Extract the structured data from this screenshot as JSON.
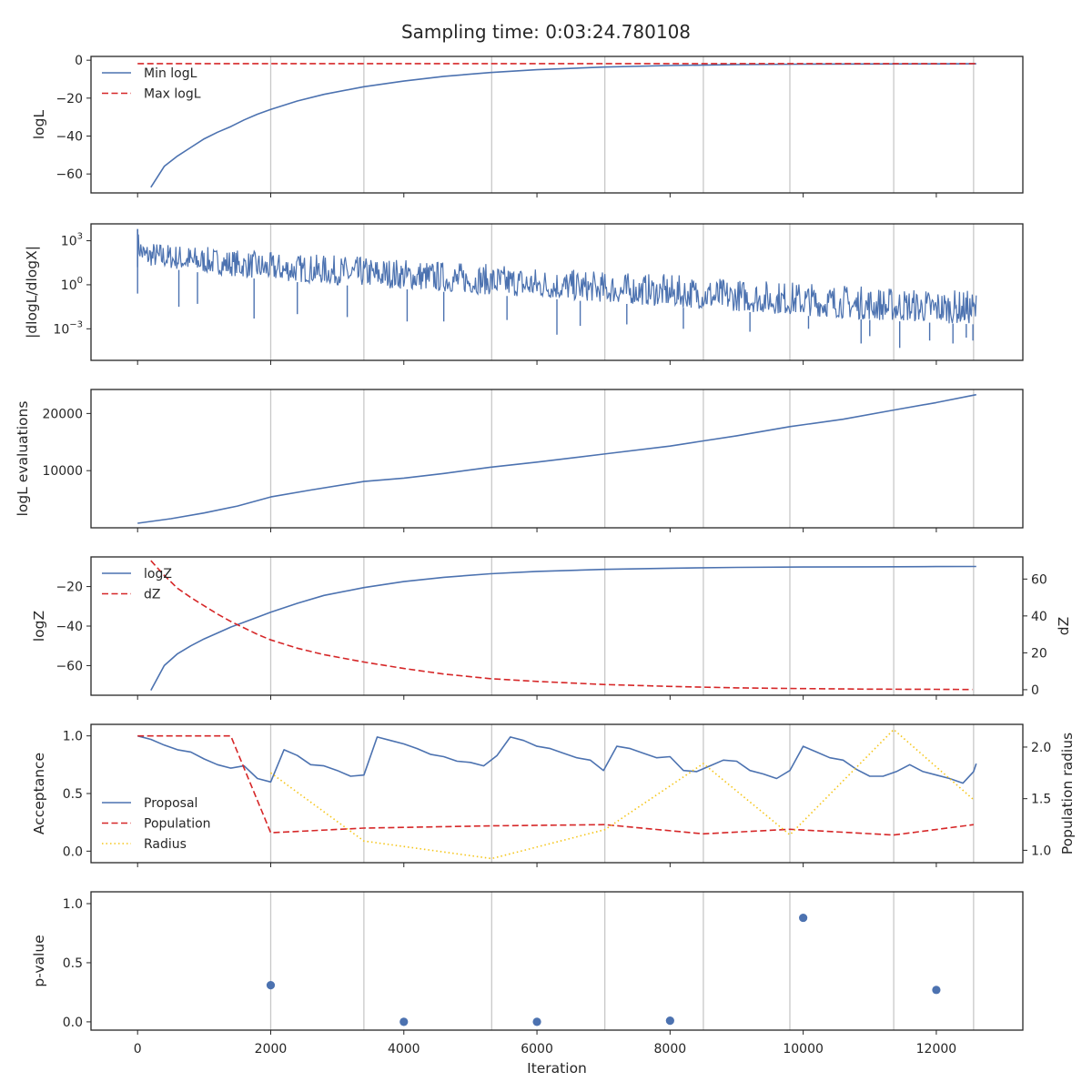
{
  "figure": {
    "title": "Sampling time: 0:03:24.780108",
    "xlabel": "Iteration",
    "x_ticks": [
      0,
      2000,
      4000,
      6000,
      8000,
      10000,
      12000
    ],
    "x_tick_labels": [
      "0",
      "2000",
      "4000",
      "6000",
      "8000",
      "10000",
      "12000"
    ],
    "xlim": [
      -700,
      13300
    ],
    "vlines": [
      2000,
      3400,
      5320,
      7020,
      8500,
      9800,
      11360,
      12560
    ]
  },
  "colors": {
    "blue": "#4c72b0",
    "red": "#d62728",
    "yellow": "#f5c518",
    "grid": "#c8c8c8",
    "axis": "#262626"
  },
  "chart_data": [
    {
      "type": "line",
      "ylabel": "logL",
      "ylim": [
        -70,
        2
      ],
      "y_ticks": [
        0,
        -20,
        -40,
        -60
      ],
      "y_tick_labels": [
        "0",
        "−20",
        "−40",
        "−60"
      ],
      "legend": {
        "placement": "upper-left",
        "entries": [
          {
            "label": "Min logL",
            "style": "solid",
            "color": "blue"
          },
          {
            "label": "Max logL",
            "style": "dashed",
            "color": "red"
          }
        ]
      },
      "series": [
        {
          "name": "Min logL",
          "style": "solid",
          "color": "blue",
          "x": [
            200,
            400,
            600,
            800,
            1000,
            1200,
            1400,
            1600,
            1800,
            2000,
            2400,
            2800,
            3400,
            4000,
            4600,
            5300,
            6000,
            7000,
            8000,
            9000,
            10000,
            11000,
            12000,
            12600
          ],
          "y": [
            -67,
            -56,
            -50.5,
            -46,
            -41.5,
            -38,
            -35,
            -31.5,
            -28.5,
            -26,
            -21.5,
            -18,
            -14,
            -11,
            -8.5,
            -6.5,
            -5,
            -3.6,
            -2.8,
            -2.3,
            -2.1,
            -2.0,
            -1.95,
            -1.9
          ]
        },
        {
          "name": "Max logL",
          "style": "dashed",
          "color": "red",
          "x": [
            0,
            12600
          ],
          "y": [
            -1.8,
            -1.8
          ]
        }
      ]
    },
    {
      "type": "line",
      "ylabel": "|dlogL/dlogX|",
      "yscale": "log",
      "ylim_log10": [
        -5.15,
        4.15
      ],
      "y_ticks_log10": [
        3,
        0,
        -3
      ],
      "y_tick_labels": [
        {
          "base": "10",
          "exp": "3"
        },
        {
          "base": "10",
          "exp": "0"
        },
        {
          "base": "10",
          "exp": "−3"
        }
      ],
      "envelope": {
        "color": "blue",
        "x": [
          0,
          100,
          1000,
          2000,
          3000,
          4000,
          5000,
          6000,
          7000,
          8000,
          9000,
          10000,
          11000,
          12000,
          12600
        ],
        "lower_log10": [
          1.9,
          1.3,
          0.8,
          0.3,
          0.0,
          -0.3,
          -0.6,
          -0.9,
          -1.2,
          -1.5,
          -1.8,
          -2.1,
          -2.4,
          -2.6,
          -2.7
        ],
        "upper_log10": [
          3.7,
          3.0,
          2.6,
          2.2,
          2.0,
          1.8,
          1.5,
          1.2,
          0.9,
          0.7,
          0.4,
          0.2,
          -0.1,
          -0.3,
          -0.4
        ]
      },
      "spikes": {
        "color": "blue",
        "x": [
          0,
          620,
          900,
          1750,
          2400,
          3150,
          4050,
          4600,
          5550,
          6300,
          6650,
          7350,
          8200,
          9200,
          10080,
          10870,
          11000,
          11450,
          11900,
          12250,
          12450,
          12550
        ],
        "y_log10": [
          -0.6,
          -1.5,
          -1.3,
          -2.3,
          -2.0,
          -2.2,
          -2.5,
          -2.5,
          -2.4,
          -3.4,
          -2.8,
          -2.7,
          -3.0,
          -3.2,
          -3.0,
          -4.0,
          -3.5,
          -4.3,
          -3.8,
          -4.0,
          -3.6,
          -3.8
        ]
      }
    },
    {
      "type": "line",
      "ylabel": "logL evaluations",
      "ylim": [
        0,
        24200
      ],
      "y_ticks": [
        20000,
        10000
      ],
      "y_tick_labels": [
        "20000",
        "10000"
      ],
      "series": [
        {
          "name": "",
          "style": "solid",
          "color": "blue",
          "x": [
            0,
            500,
            1000,
            1500,
            2000,
            2600,
            3400,
            4000,
            4600,
            5300,
            6000,
            7000,
            8000,
            8500,
            9000,
            9800,
            10600,
            11360,
            12000,
            12600
          ],
          "y": [
            800,
            1600,
            2600,
            3800,
            5400,
            6600,
            8100,
            8700,
            9500,
            10600,
            11500,
            12900,
            14300,
            15200,
            16100,
            17700,
            19000,
            20600,
            21900,
            23300
          ]
        }
      ]
    },
    {
      "type": "line",
      "ylabel": "logZ",
      "ylabel_right": "dZ",
      "ylim": [
        -75,
        -5
      ],
      "y_ticks": [
        -20,
        -40,
        -60
      ],
      "y_tick_labels": [
        "−20",
        "−40",
        "−60"
      ],
      "ylim_right": [
        -3,
        72
      ],
      "y_ticks_right": [
        60,
        40,
        20,
        0
      ],
      "y_tick_labels_right": [
        "60",
        "40",
        "20",
        "0"
      ],
      "legend": {
        "placement": "upper-left",
        "entries": [
          {
            "label": "logZ",
            "style": "solid",
            "color": "blue"
          },
          {
            "label": "dZ",
            "style": "dashed",
            "color": "red"
          }
        ]
      },
      "series": [
        {
          "name": "logZ",
          "axis": "left",
          "style": "solid",
          "color": "blue",
          "x": [
            200,
            400,
            600,
            800,
            1000,
            1200,
            1400,
            1600,
            1800,
            2000,
            2400,
            2800,
            3400,
            4000,
            4600,
            5300,
            6000,
            7000,
            8000,
            9000,
            10000,
            11000,
            12000,
            12600
          ],
          "y": [
            -72.5,
            -60,
            -54,
            -50,
            -46.5,
            -43.5,
            -40.5,
            -38,
            -35.5,
            -33,
            -28.5,
            -24.5,
            -20.5,
            -17.5,
            -15.3,
            -13.5,
            -12.3,
            -11.3,
            -10.7,
            -10.3,
            -10.1,
            -10.0,
            -9.9,
            -9.85
          ]
        },
        {
          "name": "dZ",
          "axis": "right",
          "style": "dashed",
          "color": "red",
          "x": [
            200,
            400,
            600,
            800,
            1000,
            1200,
            1400,
            1600,
            1800,
            2000,
            2400,
            2800,
            3400,
            4000,
            4600,
            5300,
            6000,
            7000,
            8000,
            9000,
            10000,
            11000,
            12000,
            12540
          ],
          "y": [
            70,
            62,
            55,
            50,
            45.5,
            41,
            37,
            33.5,
            30,
            27,
            22.5,
            19,
            15,
            11.5,
            8.5,
            6,
            4.5,
            2.8,
            1.8,
            1.0,
            0.6,
            0.3,
            0.2,
            0.1
          ]
        }
      ]
    },
    {
      "type": "line",
      "ylabel": "Acceptance",
      "ylabel_right": "Population radius",
      "ylim": [
        -0.1,
        1.1
      ],
      "y_ticks": [
        1.0,
        0.5,
        0.0
      ],
      "y_tick_labels": [
        "1.0",
        "0.5",
        "0.0"
      ],
      "ylim_right": [
        0.88,
        2.22
      ],
      "y_ticks_right": [
        2.0,
        1.5,
        1.0
      ],
      "y_tick_labels_right": [
        "2.0",
        "1.5",
        "1.0"
      ],
      "legend": {
        "placement": "center-left",
        "entries": [
          {
            "label": "Proposal",
            "style": "solid",
            "color": "blue"
          },
          {
            "label": "Population",
            "style": "dashed",
            "color": "red"
          },
          {
            "label": "Radius",
            "style": "dotted",
            "color": "yellow"
          }
        ]
      },
      "series": [
        {
          "name": "Proposal",
          "axis": "left",
          "style": "solid",
          "color": "blue",
          "x": [
            0,
            200,
            400,
            600,
            800,
            1000,
            1200,
            1400,
            1600,
            1800,
            2000,
            2200,
            2400,
            2600,
            2800,
            3000,
            3200,
            3400,
            3600,
            3800,
            4000,
            4200,
            4400,
            4600,
            4800,
            5000,
            5200,
            5400,
            5600,
            5800,
            6000,
            6200,
            6400,
            6600,
            6800,
            7000,
            7200,
            7400,
            7600,
            7800,
            8000,
            8200,
            8400,
            8600,
            8800,
            9000,
            9200,
            9400,
            9600,
            9800,
            10000,
            10200,
            10400,
            10600,
            10800,
            11000,
            11200,
            11400,
            11600,
            11800,
            12000,
            12200,
            12400,
            12560,
            12600
          ],
          "y": [
            1.0,
            0.97,
            0.92,
            0.88,
            0.86,
            0.8,
            0.75,
            0.72,
            0.74,
            0.63,
            0.6,
            0.88,
            0.83,
            0.75,
            0.74,
            0.7,
            0.65,
            0.66,
            0.99,
            0.96,
            0.93,
            0.89,
            0.84,
            0.82,
            0.78,
            0.77,
            0.74,
            0.83,
            0.99,
            0.96,
            0.91,
            0.89,
            0.85,
            0.81,
            0.79,
            0.7,
            0.91,
            0.89,
            0.85,
            0.81,
            0.82,
            0.7,
            0.69,
            0.74,
            0.79,
            0.78,
            0.7,
            0.67,
            0.63,
            0.7,
            0.91,
            0.86,
            0.81,
            0.79,
            0.71,
            0.65,
            0.65,
            0.69,
            0.75,
            0.69,
            0.66,
            0.63,
            0.59,
            0.69,
            0.76
          ]
        },
        {
          "name": "Population",
          "axis": "left",
          "style": "dashed",
          "color": "red",
          "x": [
            0,
            1400,
            2000,
            3400,
            5320,
            7020,
            8500,
            9800,
            11360,
            12560
          ],
          "y": [
            1.0,
            1.0,
            0.16,
            0.2,
            0.22,
            0.23,
            0.15,
            0.19,
            0.14,
            0.23
          ]
        },
        {
          "name": "Radius",
          "axis": "right",
          "style": "dotted",
          "color": "yellow",
          "x": [
            2000,
            3400,
            5320,
            7020,
            8500,
            9800,
            11360,
            12560
          ],
          "y": [
            1.75,
            1.09,
            0.92,
            1.2,
            1.84,
            1.15,
            2.17,
            1.49
          ]
        }
      ]
    },
    {
      "type": "scatter",
      "ylabel": "p-value",
      "ylim": [
        -0.07,
        1.1
      ],
      "y_ticks": [
        1.0,
        0.5,
        0.0
      ],
      "y_tick_labels": [
        "1.0",
        "0.5",
        "0.0"
      ],
      "series": [
        {
          "name": "",
          "color": "blue",
          "x": [
            2000,
            4000,
            6000,
            8000,
            10000,
            12000
          ],
          "y": [
            0.31,
            0.0,
            0.0,
            0.01,
            0.88,
            0.27
          ]
        }
      ]
    }
  ]
}
